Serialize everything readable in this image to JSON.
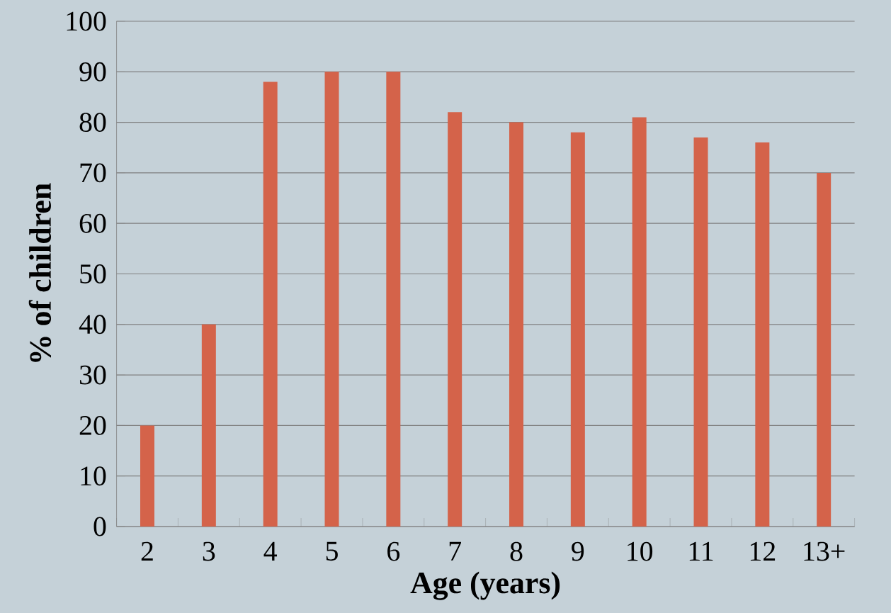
{
  "chart_data": {
    "type": "bar",
    "xlabel": "Age (years)",
    "ylabel": "% of children",
    "categories": [
      "2",
      "3",
      "4",
      "5",
      "6",
      "7",
      "8",
      "9",
      "10",
      "11",
      "12",
      "13+"
    ],
    "values": [
      20,
      40,
      88,
      90,
      90,
      82,
      80,
      78,
      81,
      77,
      76,
      70
    ],
    "color": "#d4634a",
    "ylim": [
      0,
      100
    ],
    "yticks": [
      0,
      10,
      20,
      30,
      40,
      50,
      60,
      70,
      80,
      90,
      100
    ],
    "grid": "y"
  }
}
